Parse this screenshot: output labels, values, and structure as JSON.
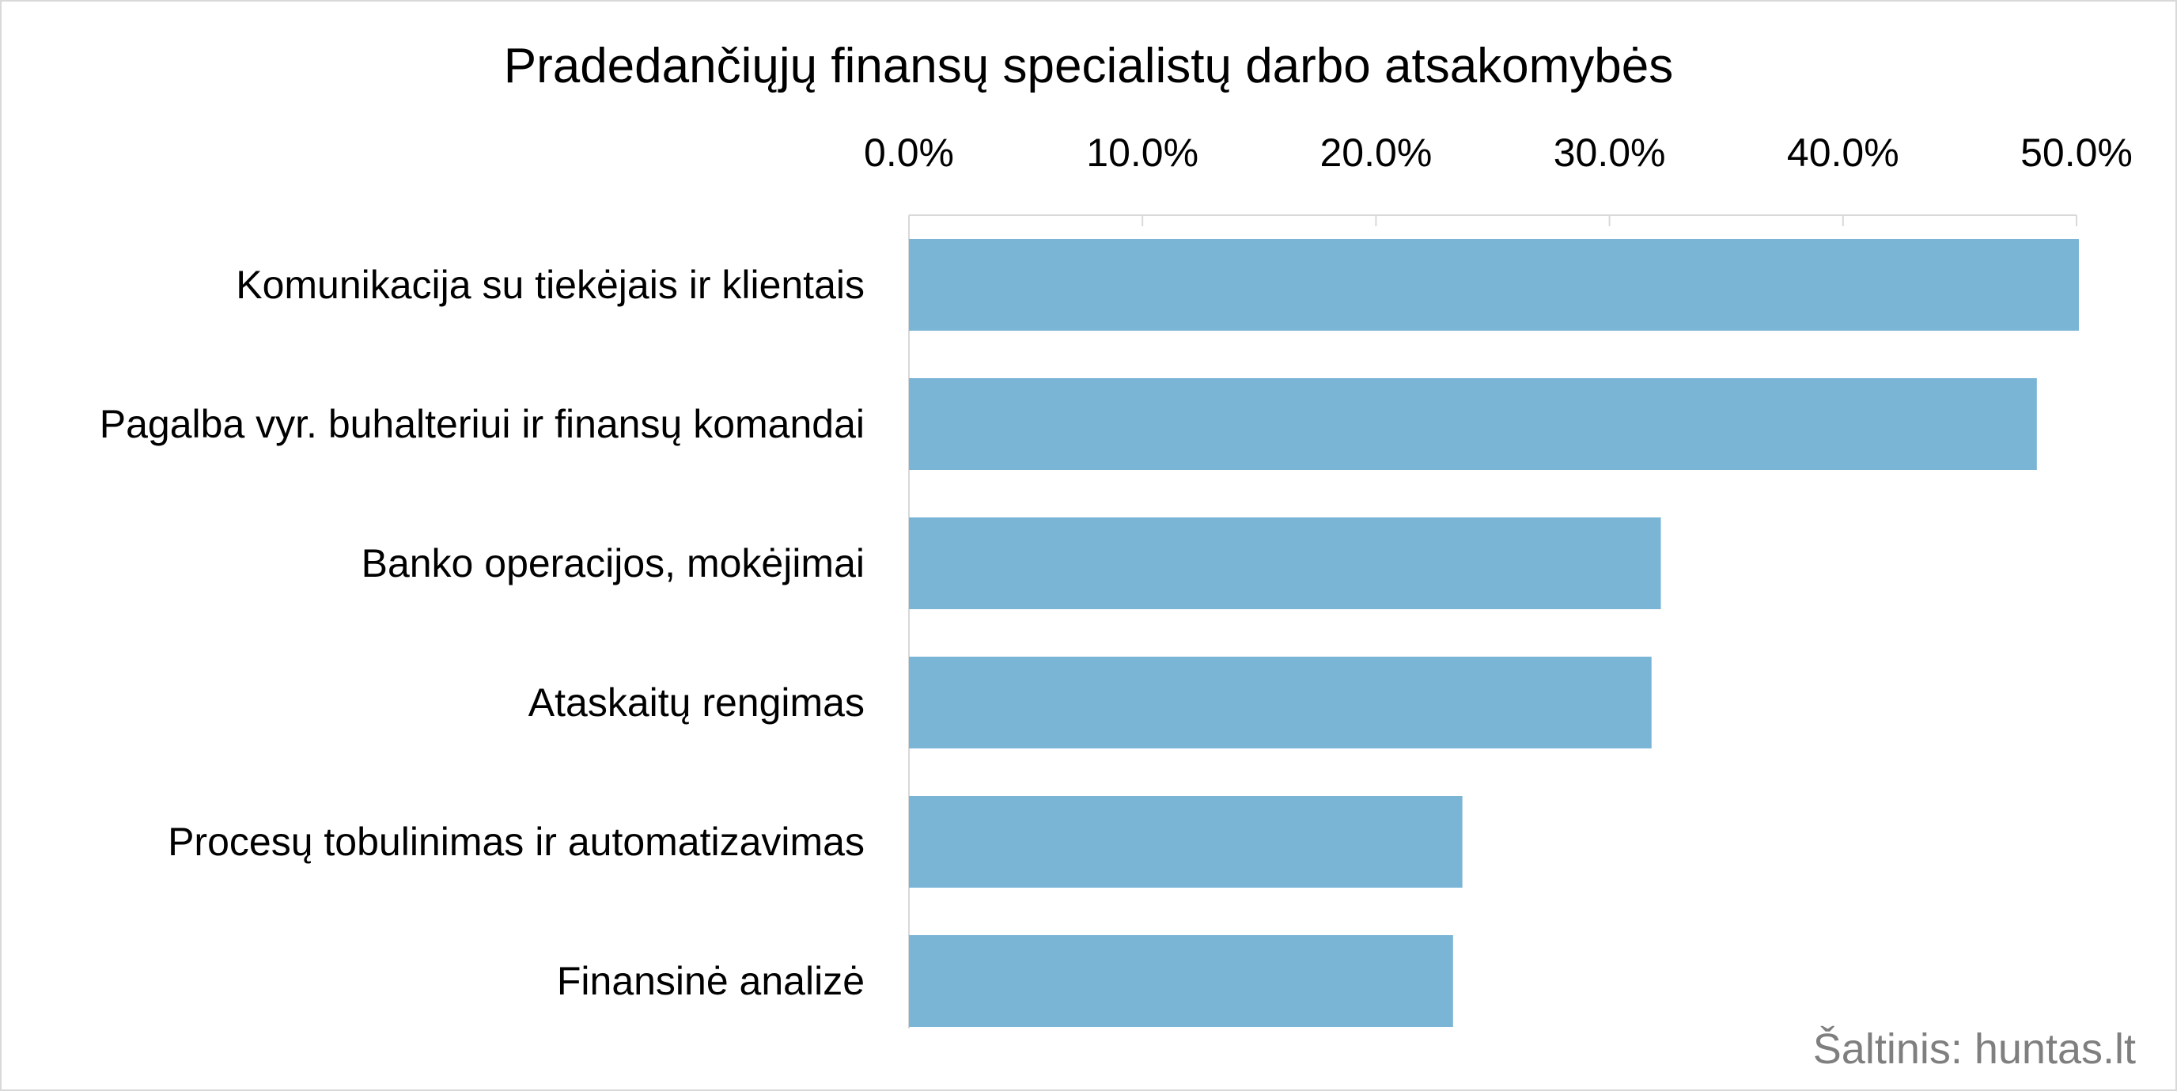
{
  "chart_data": {
    "type": "bar",
    "orientation": "horizontal",
    "title": "Pradedančiųjų finansų specialistų darbo atsakomybės",
    "categories": [
      "Komunikacija su tiekėjais ir klientais",
      "Pagalba vyr. buhalteriui ir finansų komandai",
      "Banko operacijos, mokėjimai",
      "Ataskaitų rengimas",
      "Procesų tobulinimas ir automatizavimas",
      "Finansinė analizė"
    ],
    "values": [
      50.1,
      48.3,
      32.2,
      31.8,
      23.7,
      23.3
    ],
    "xlim": [
      0,
      50
    ],
    "ticks": [
      0,
      10,
      20,
      30,
      40,
      50
    ],
    "tick_labels": [
      "0.0%",
      "10.0%",
      "20.0%",
      "30.0%",
      "40.0%",
      "50.0%"
    ],
    "axis_position": "top",
    "bar_color": "#7ab5d6",
    "gridlines": false,
    "legend": "none",
    "source_note": "Šaltinis: huntas.lt"
  }
}
